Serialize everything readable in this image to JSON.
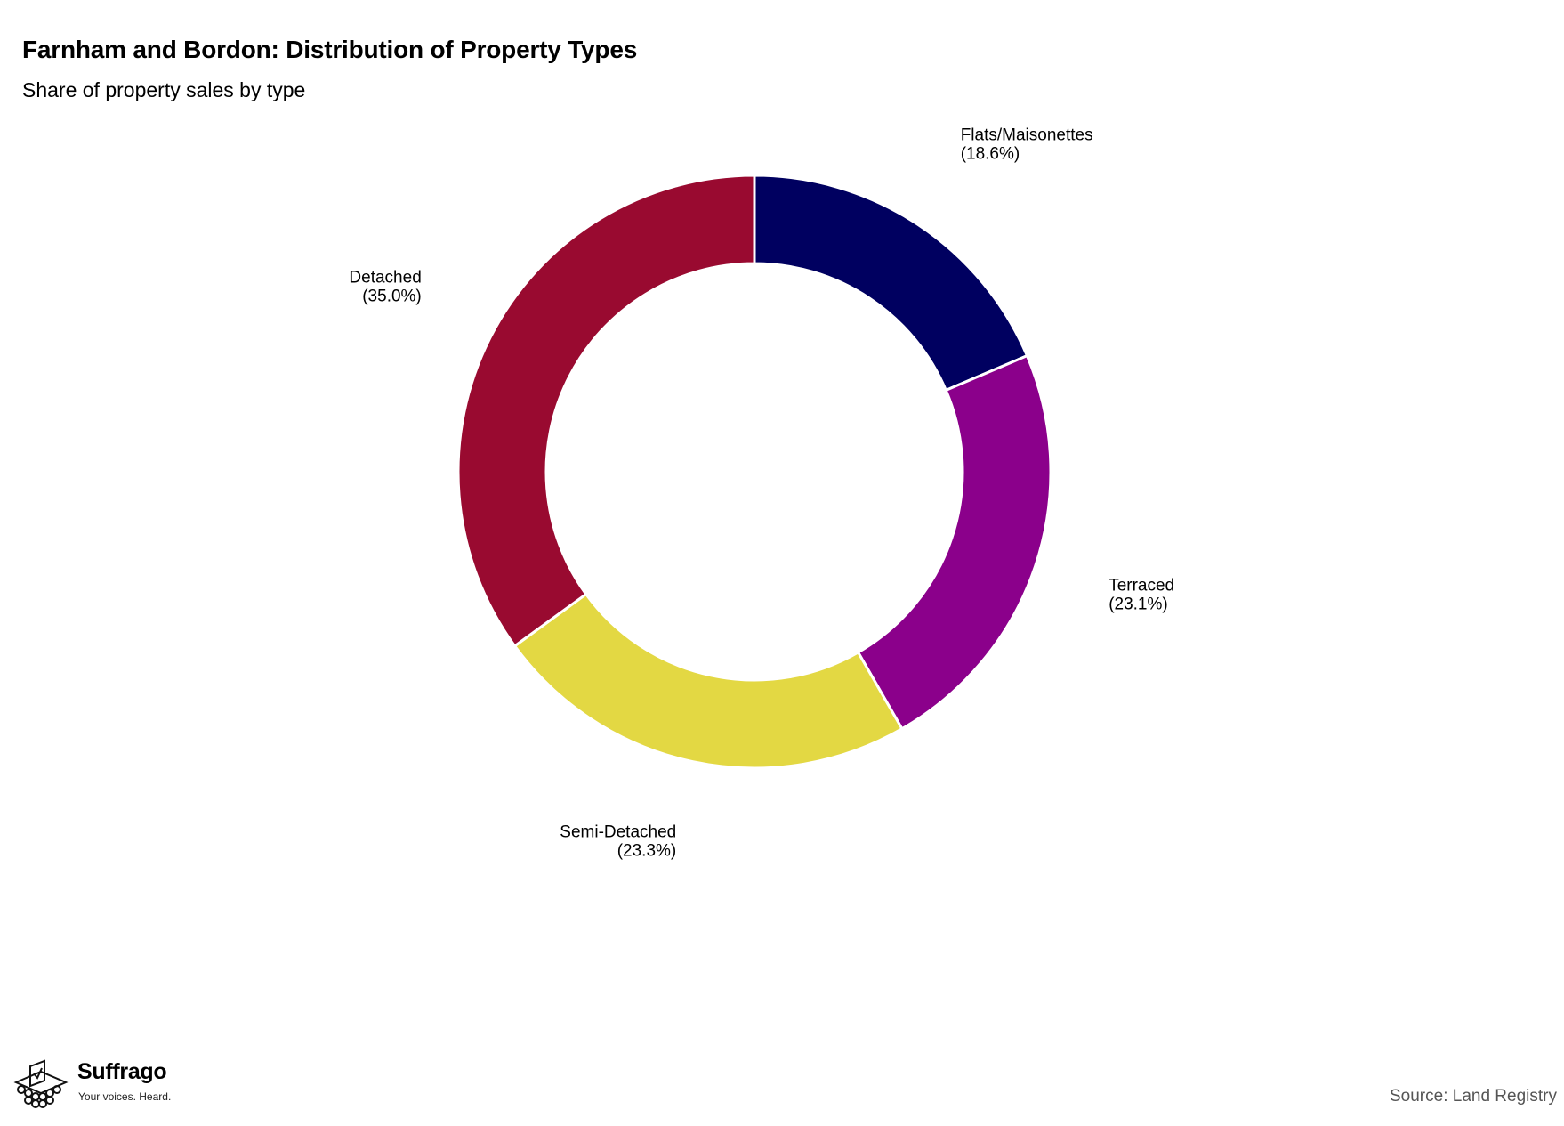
{
  "header": {
    "title": "Farnham and Bordon: Distribution of Property Types",
    "subtitle": "Share of property sales by type"
  },
  "footer": {
    "source": "Source: Land Registry",
    "brand_name": "Suffrago",
    "brand_tagline": "Your voices. Heard.",
    "brand_icon": "ballot-box-icon"
  },
  "chart_data": {
    "type": "pie",
    "variant": "donut",
    "title": "Farnham and Bordon: Distribution of Property Types",
    "subtitle": "Share of property sales by type",
    "start_angle": "12 o'clock",
    "direction": "clockwise",
    "slices": [
      {
        "label": "Flats/Maisonettes",
        "value": 18.6,
        "display": "(18.6%)",
        "color": "#000060"
      },
      {
        "label": "Terraced",
        "value": 23.1,
        "display": "(23.1%)",
        "color": "#8b008b"
      },
      {
        "label": "Semi-Detached",
        "value": 23.3,
        "display": "(23.3%)",
        "color": "#e3d843"
      },
      {
        "label": "Detached",
        "value": 35.0,
        "display": "(35.0%)",
        "color": "#990a30"
      }
    ],
    "legend": "none",
    "grid": false
  }
}
